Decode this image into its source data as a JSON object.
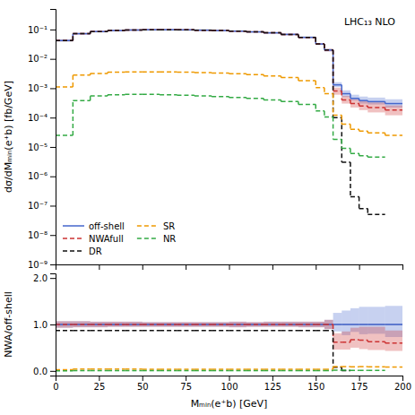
{
  "chart_data": [
    {
      "type": "histogram",
      "annotations": [
        "LHC₁₃ NLO"
      ],
      "y_label": "dσ/dMₘᵢₙ(e⁺b) [fb/GeV]",
      "bins": [
        0,
        10,
        20,
        30,
        40,
        50,
        60,
        70,
        80,
        90,
        100,
        110,
        120,
        130,
        140,
        150,
        155,
        160,
        165,
        170,
        175,
        180,
        190,
        200
      ],
      "xlim": [
        0,
        200
      ],
      "xticks": [
        0,
        25,
        50,
        75,
        100,
        125,
        150,
        175,
        200
      ],
      "ylim": [
        1e-09,
        0.5
      ],
      "yticks": [
        {
          "value": 1e-09,
          "label": "10⁻⁹"
        },
        {
          "value": 1e-08,
          "label": "10⁻⁸"
        },
        {
          "value": 1e-07,
          "label": "10⁻⁷"
        },
        {
          "value": 1e-06,
          "label": "10⁻⁶"
        },
        {
          "value": 1e-05,
          "label": "10⁻⁵"
        },
        {
          "value": 0.0001,
          "label": "10⁻⁴"
        },
        {
          "value": 0.001,
          "label": "10⁻³"
        },
        {
          "value": 0.01,
          "label": "10⁻²"
        },
        {
          "value": 0.1,
          "label": "10⁻¹"
        }
      ],
      "log": "y",
      "grid": false,
      "legend": "lower left",
      "tick_labels": "y",
      "series": [
        {
          "name": "off-shell",
          "color": "#4466cc",
          "line_style": "solid",
          "values": [
            0.042,
            0.072,
            0.085,
            0.092,
            0.096,
            0.098,
            0.098,
            0.097,
            0.095,
            0.092,
            0.088,
            0.083,
            0.077,
            0.068,
            0.054,
            0.032,
            0.02,
            0.0013,
            0.00065,
            0.00045,
            0.00038,
            0.00035,
            0.0003
          ],
          "lower": [
            0.039,
            0.068,
            0.08,
            0.087,
            0.091,
            0.093,
            0.093,
            0.092,
            0.09,
            0.087,
            0.083,
            0.079,
            0.073,
            0.064,
            0.051,
            0.03,
            0.018,
            0.0011,
            0.0005,
            0.00038,
            0.0003,
            0.00028,
            0.00022
          ],
          "upper": [
            0.045,
            0.076,
            0.09,
            0.097,
            0.101,
            0.103,
            0.103,
            0.102,
            0.1,
            0.097,
            0.093,
            0.087,
            0.081,
            0.072,
            0.057,
            0.034,
            0.022,
            0.0016,
            0.00085,
            0.0006,
            0.00052,
            0.00048,
            0.00042
          ]
        },
        {
          "name": "NWAfull",
          "color": "#cc3333",
          "line_style": "dashed",
          "values": [
            0.042,
            0.072,
            0.085,
            0.092,
            0.096,
            0.098,
            0.098,
            0.097,
            0.095,
            0.092,
            0.088,
            0.083,
            0.077,
            0.068,
            0.054,
            0.032,
            0.02,
            0.0008,
            0.0004,
            0.0003,
            0.00025,
            0.00022,
            0.00018
          ],
          "lower": [
            0.039,
            0.068,
            0.08,
            0.087,
            0.091,
            0.093,
            0.093,
            0.092,
            0.09,
            0.087,
            0.083,
            0.079,
            0.073,
            0.064,
            0.051,
            0.03,
            0.018,
            0.0006,
            0.0003,
            0.00022,
            0.00018,
            0.00015,
            0.00012
          ],
          "upper": [
            0.045,
            0.076,
            0.09,
            0.097,
            0.101,
            0.103,
            0.103,
            0.102,
            0.1,
            0.097,
            0.093,
            0.087,
            0.081,
            0.072,
            0.057,
            0.034,
            0.022,
            0.00105,
            0.00055,
            0.00042,
            0.00036,
            0.00033,
            0.00026
          ]
        },
        {
          "name": "DR",
          "color": "#111111",
          "line_style": "dashed",
          "values": [
            0.042,
            0.072,
            0.085,
            0.092,
            0.096,
            0.098,
            0.098,
            0.097,
            0.095,
            0.092,
            0.088,
            0.083,
            0.077,
            0.068,
            0.054,
            0.032,
            0.02,
            0.0001,
            3e-06,
            2e-07,
            8e-08,
            5e-08,
            null
          ]
        },
        {
          "name": "SR",
          "color": "#ee9900",
          "line_style": "dashed",
          "values": [
            0.0011,
            0.0028,
            0.0032,
            0.0035,
            0.0036,
            0.0036,
            0.0036,
            0.0035,
            0.0034,
            0.0033,
            0.0031,
            0.0029,
            0.0026,
            0.0023,
            0.0018,
            0.00105,
            0.00065,
            0.00012,
            6e-05,
            4e-05,
            3.5e-05,
            3e-05,
            2.5e-05
          ]
        },
        {
          "name": "NR",
          "color": "#33aa44",
          "line_style": "dashed",
          "values": [
            2.5e-05,
            0.00038,
            0.00055,
            0.0006,
            0.00062,
            0.00062,
            0.0006,
            0.00058,
            0.00055,
            0.00052,
            0.00048,
            0.00045,
            0.0004,
            0.00035,
            0.00028,
            0.00017,
            0.000105,
            1.8e-05,
            9e-06,
            6e-06,
            5e-06,
            4.5e-06,
            null
          ]
        }
      ]
    },
    {
      "type": "histogram",
      "x_label": "Mₘᵢₙ(e⁺b) [GeV]",
      "y_label": "NWA/off-shell",
      "bins": [
        0,
        10,
        20,
        30,
        40,
        50,
        60,
        70,
        80,
        90,
        100,
        110,
        120,
        130,
        140,
        150,
        155,
        160,
        165,
        170,
        175,
        180,
        190,
        200
      ],
      "xlim": [
        0,
        200
      ],
      "xticks": [
        0,
        25,
        50,
        75,
        100,
        125,
        150,
        175,
        200
      ],
      "ylim": [
        -0.1,
        2.1
      ],
      "yticks": [
        {
          "value": 0.0,
          "label": "0.0"
        },
        {
          "value": 1.0,
          "label": "1.0"
        },
        {
          "value": 2.0,
          "label": "2.0"
        }
      ],
      "grid": false,
      "reference_line": 1.0,
      "series": [
        {
          "color": "#4466cc",
          "line_style": "solid",
          "values": [
            1.0,
            1.0,
            1.0,
            1.0,
            1.0,
            1.0,
            1.0,
            1.0,
            1.0,
            1.0,
            1.0,
            1.0,
            1.0,
            1.0,
            1.0,
            1.0,
            1.0,
            1.0,
            1.0,
            1.0,
            1.0,
            1.0,
            1.0
          ],
          "lower": [
            0.93,
            0.94,
            0.94,
            0.95,
            0.95,
            0.95,
            0.95,
            0.95,
            0.95,
            0.95,
            0.94,
            0.95,
            0.95,
            0.95,
            0.94,
            0.94,
            0.9,
            0.85,
            0.77,
            0.84,
            0.79,
            0.8,
            0.73
          ],
          "upper": [
            1.07,
            1.07,
            1.06,
            1.06,
            1.06,
            1.05,
            1.05,
            1.05,
            1.05,
            1.05,
            1.06,
            1.05,
            1.06,
            1.06,
            1.06,
            1.06,
            1.1,
            1.25,
            1.3,
            1.35,
            1.38,
            1.38,
            1.4
          ]
        },
        {
          "color": "#cc3333",
          "line_style": "dashed",
          "values": [
            1.0,
            1.0,
            1.0,
            1.0,
            1.0,
            1.0,
            1.0,
            1.0,
            1.0,
            1.0,
            1.0,
            1.0,
            1.0,
            1.0,
            1.0,
            1.0,
            1.0,
            0.62,
            0.62,
            0.67,
            0.66,
            0.63,
            0.6
          ],
          "lower": [
            0.93,
            0.94,
            0.94,
            0.95,
            0.95,
            0.95,
            0.95,
            0.95,
            0.95,
            0.95,
            0.94,
            0.95,
            0.95,
            0.95,
            0.94,
            0.94,
            0.9,
            0.46,
            0.46,
            0.5,
            0.47,
            0.45,
            0.43
          ],
          "upper": [
            1.07,
            1.07,
            1.06,
            1.06,
            1.06,
            1.05,
            1.05,
            1.05,
            1.05,
            1.05,
            1.06,
            1.05,
            1.06,
            1.06,
            1.06,
            1.06,
            1.1,
            0.81,
            0.85,
            0.93,
            0.95,
            0.95,
            0.87
          ]
        },
        {
          "color": "#111111",
          "line_style": "dashed",
          "values": [
            0.87,
            0.87,
            0.87,
            0.87,
            0.87,
            0.87,
            0.87,
            0.87,
            0.87,
            0.87,
            0.87,
            0.87,
            0.87,
            0.87,
            0.87,
            0.87,
            0.87,
            0.077,
            0.005,
            null,
            null,
            null,
            null
          ]
        },
        {
          "color": "#ee9900",
          "line_style": "dashed",
          "values": [
            0.026,
            0.039,
            0.038,
            0.038,
            0.038,
            0.037,
            0.037,
            0.036,
            0.036,
            0.036,
            0.035,
            0.035,
            0.034,
            0.034,
            0.033,
            0.033,
            0.033,
            0.092,
            0.092,
            0.089,
            0.092,
            0.086,
            0.083
          ]
        },
        {
          "color": "#33aa44",
          "line_style": "dashed",
          "values": [
            0.0006,
            0.0053,
            0.0065,
            0.0065,
            0.0065,
            0.0063,
            0.0061,
            0.006,
            0.0058,
            0.0057,
            0.0055,
            0.0054,
            0.0052,
            0.0051,
            0.0052,
            0.0053,
            0.0053,
            0.014,
            0.014,
            0.013,
            0.013,
            0.013,
            null
          ]
        }
      ]
    }
  ]
}
